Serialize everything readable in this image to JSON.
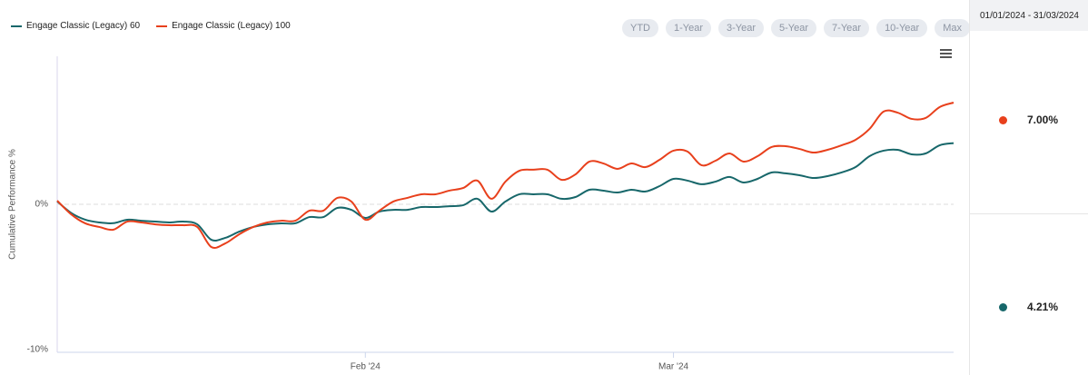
{
  "chart_data": {
    "type": "line",
    "y_label": "Cumulative Performance %",
    "categories": [
      null,
      null,
      null,
      null,
      null,
      null,
      null,
      null,
      null,
      null,
      null,
      null,
      null,
      null,
      null,
      null,
      null,
      null,
      null,
      null,
      null,
      null,
      "Feb '24",
      null,
      null,
      null,
      null,
      null,
      null,
      null,
      null,
      null,
      null,
      null,
      null,
      null,
      null,
      null,
      null,
      null,
      null,
      null,
      null,
      null,
      "Mar '24",
      null,
      null,
      null,
      null,
      null,
      null,
      null,
      null,
      null,
      null,
      null,
      null,
      null,
      null,
      null,
      null,
      null,
      null,
      null,
      null
    ],
    "series": [
      {
        "name": "Engage Classic (Legacy) 60",
        "color": "#17676a",
        "values": [
          0.2,
          -0.6,
          -1.06,
          -1.25,
          -1.3,
          -1.06,
          -1.13,
          -1.19,
          -1.25,
          -1.19,
          -1.38,
          -2.44,
          -2.31,
          -1.88,
          -1.56,
          -1.38,
          -1.31,
          -1.31,
          -0.88,
          -0.88,
          -0.25,
          -0.38,
          -0.94,
          -0.5,
          -0.38,
          -0.38,
          -0.19,
          -0.19,
          -0.13,
          -0.06,
          0.38,
          -0.5,
          0.19,
          0.69,
          0.69,
          0.69,
          0.38,
          0.5,
          1.0,
          0.94,
          0.81,
          1.0,
          0.88,
          1.25,
          1.75,
          1.63,
          1.38,
          1.56,
          1.88,
          1.5,
          1.75,
          2.19,
          2.13,
          2.0,
          1.81,
          1.94,
          2.19,
          2.56,
          3.31,
          3.69,
          3.75,
          3.44,
          3.5,
          4.06,
          4.21
        ]
      },
      {
        "name": "Engage Classic (Legacy) 100",
        "color": "#e8401c",
        "values": [
          0.25,
          -0.69,
          -1.31,
          -1.56,
          -1.75,
          -1.19,
          -1.25,
          -1.38,
          -1.44,
          -1.44,
          -1.56,
          -2.94,
          -2.69,
          -2.06,
          -1.56,
          -1.25,
          -1.13,
          -1.13,
          -0.44,
          -0.44,
          0.44,
          0.19,
          -1.06,
          -0.44,
          0.19,
          0.44,
          0.69,
          0.69,
          0.94,
          1.13,
          1.63,
          0.38,
          1.56,
          2.31,
          2.38,
          2.38,
          1.69,
          2.06,
          2.94,
          2.81,
          2.44,
          2.81,
          2.56,
          3.06,
          3.69,
          3.63,
          2.69,
          3.0,
          3.5,
          2.94,
          3.31,
          3.94,
          4.0,
          3.81,
          3.56,
          3.75,
          4.06,
          4.44,
          5.19,
          6.38,
          6.31,
          5.88,
          5.94,
          6.69,
          7.0
        ]
      }
    ],
    "ylim": [
      -10,
      10
    ],
    "yticks": [
      {
        "value": -10,
        "label": "-10%"
      },
      {
        "value": 0,
        "label": "0%"
      }
    ],
    "grid": true
  },
  "range_buttons": [
    "YTD",
    "1-Year",
    "3-Year",
    "5-Year",
    "7-Year",
    "10-Year",
    "Max"
  ],
  "summary": {
    "period": "01/01/2024 - 31/03/2024",
    "items": [
      {
        "label": "7.00%",
        "color": "#e8401c"
      },
      {
        "label": "4.21%",
        "color": "#17676a"
      }
    ]
  }
}
